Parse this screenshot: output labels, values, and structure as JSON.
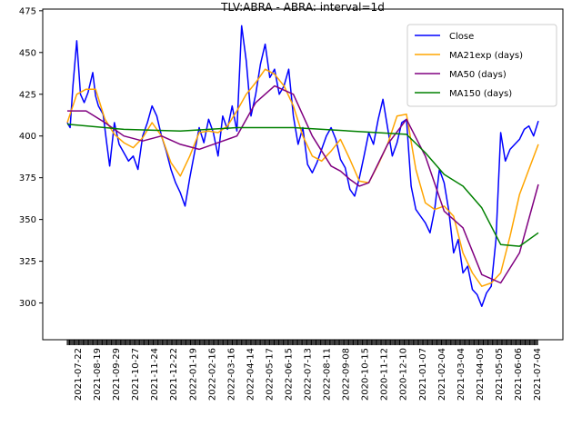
{
  "chart_data": {
    "type": "line",
    "title": "TLV:ABRA - ABRA: interval=1d",
    "xlabel": "",
    "ylabel": "",
    "ylim": [
      278,
      476
    ],
    "yticks": [
      300,
      325,
      350,
      375,
      400,
      425,
      450,
      475
    ],
    "xlim": [
      0,
      500
    ],
    "x_tick_labels": [
      "2021-07-22",
      "2021-08-19",
      "2021-09-29",
      "2021-10-27",
      "2021-11-24",
      "2021-12-22",
      "2022-01-19",
      "2022-02-16",
      "2022-03-16",
      "2022-04-14",
      "2022-05-17",
      "2022-06-15",
      "2022-07-13",
      "2022-08-11",
      "2022-09-08",
      "2020-10-15",
      "2020-11-12",
      "2020-12-10",
      "2021-01-07",
      "2021-02-04",
      "2021-03-04",
      "2021-04-05",
      "2021-05-05",
      "2021-06-06",
      "2021-07-04"
    ],
    "grid": false,
    "legend": "top-right",
    "series": [
      {
        "name": "Close",
        "color": "#0000ff",
        "x": [
          0,
          3,
          6,
          10,
          14,
          18,
          22,
          27,
          30,
          33,
          38,
          42,
          45,
          50,
          55,
          60,
          65,
          70,
          75,
          80,
          85,
          90,
          95,
          100,
          105,
          110,
          115,
          120,
          125,
          130,
          135,
          140,
          145,
          150,
          155,
          160,
          165,
          170,
          175,
          180,
          185,
          190,
          195,
          200,
          205,
          210,
          215,
          220,
          225,
          230,
          235,
          240,
          245,
          250,
          255,
          260,
          265,
          270,
          275,
          280,
          285,
          290,
          295,
          300,
          305,
          310,
          315,
          320,
          325,
          330,
          335,
          340,
          345,
          350,
          355,
          360,
          365,
          370,
          375,
          380,
          385,
          390,
          395,
          400,
          405,
          410,
          415,
          420,
          425,
          430,
          435,
          440,
          445,
          450,
          455,
          460,
          465,
          470,
          475,
          480,
          485,
          490,
          495,
          500
        ],
        "y": [
          408,
          405,
          430,
          457,
          425,
          420,
          426,
          438,
          424,
          418,
          413,
          395,
          382,
          408,
          395,
          390,
          385,
          388,
          380,
          400,
          408,
          418,
          412,
          400,
          391,
          380,
          372,
          366,
          358,
          375,
          390,
          405,
          396,
          410,
          402,
          388,
          412,
          404,
          418,
          403,
          466,
          445,
          412,
          425,
          443,
          455,
          435,
          440,
          425,
          430,
          440,
          412,
          395,
          405,
          383,
          378,
          384,
          392,
          400,
          405,
          398,
          386,
          381,
          368,
          364,
          375,
          388,
          402,
          395,
          410,
          422,
          405,
          388,
          396,
          408,
          410,
          370,
          356,
          352,
          348,
          342,
          356,
          380,
          372,
          355,
          330,
          338,
          318,
          322,
          308,
          305,
          298,
          306,
          310,
          338,
          402,
          385,
          392,
          395,
          398,
          404,
          406,
          400,
          409
        ]
      },
      {
        "name": "MA21exp (days)",
        "color": "#ffa500",
        "x": [
          0,
          10,
          20,
          30,
          40,
          50,
          60,
          70,
          80,
          90,
          100,
          110,
          120,
          130,
          140,
          150,
          160,
          170,
          180,
          190,
          200,
          210,
          220,
          230,
          240,
          250,
          260,
          270,
          280,
          290,
          300,
          310,
          320,
          330,
          340,
          350,
          360,
          370,
          380,
          390,
          400,
          410,
          420,
          430,
          440,
          450,
          460,
          470,
          480,
          490,
          500
        ],
        "y": [
          408,
          425,
          428,
          428,
          410,
          401,
          396,
          393,
          399,
          408,
          400,
          384,
          376,
          388,
          402,
          403,
          402,
          406,
          415,
          425,
          432,
          440,
          437,
          430,
          418,
          400,
          388,
          385,
          391,
          398,
          386,
          373,
          372,
          383,
          395,
          412,
          413,
          380,
          360,
          356,
          358,
          352,
          330,
          318,
          310,
          312,
          318,
          340,
          365,
          380,
          395
        ]
      },
      {
        "name": "MA50 (days)",
        "color": "#800080",
        "x": [
          0,
          20,
          40,
          60,
          80,
          100,
          120,
          140,
          160,
          180,
          200,
          220,
          240,
          260,
          280,
          290,
          300,
          310,
          320,
          340,
          360,
          380,
          400,
          420,
          440,
          460,
          480,
          500
        ],
        "y": [
          415,
          415,
          408,
          400,
          397,
          400,
          395,
          392,
          396,
          400,
          420,
          430,
          425,
          400,
          382,
          379,
          374,
          370,
          372,
          395,
          410,
          388,
          355,
          345,
          317,
          312,
          330,
          371
        ]
      },
      {
        "name": "MA150 (days)",
        "color": "#008000",
        "x": [
          0,
          60,
          120,
          180,
          240,
          300,
          360,
          380,
          400,
          420,
          440,
          460,
          480,
          500
        ],
        "y": [
          407,
          404,
          403,
          405,
          405,
          403,
          401,
          390,
          377,
          370,
          357,
          335,
          334,
          342
        ]
      }
    ]
  }
}
